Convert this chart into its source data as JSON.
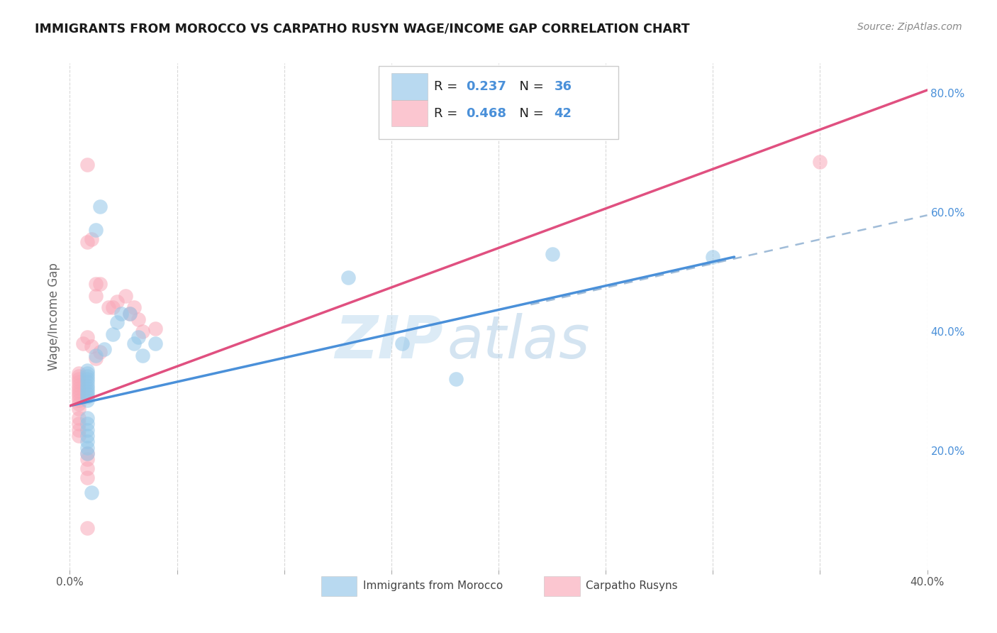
{
  "title": "IMMIGRANTS FROM MOROCCO VS CARPATHO RUSYN WAGE/INCOME GAP CORRELATION CHART",
  "source": "Source: ZipAtlas.com",
  "ylabel": "Wage/Income Gap",
  "xlim": [
    0.0,
    0.4
  ],
  "ylim": [
    0.0,
    0.85
  ],
  "blue_R": "0.237",
  "blue_N": "36",
  "pink_R": "0.468",
  "pink_N": "42",
  "blue_color": "#93c6e8",
  "pink_color": "#f9a8b8",
  "blue_line_color": "#4a90d9",
  "pink_line_color": "#e05080",
  "dashed_line_color": "#a0bcd8",
  "watermark_zip": "ZIP",
  "watermark_atlas": "atlas",
  "background_color": "#ffffff",
  "grid_color": "#d8d8d8",
  "blue_line_x0": 0.0,
  "blue_line_y0": 0.275,
  "blue_line_x1": 0.31,
  "blue_line_y1": 0.525,
  "pink_line_x0": 0.0,
  "pink_line_y0": 0.275,
  "pink_line_x1": 0.4,
  "pink_line_y1": 0.805,
  "dash_line_x0": 0.215,
  "dash_line_y0": 0.445,
  "dash_line_x1": 0.4,
  "dash_line_y1": 0.595,
  "blue_scatter_x": [
    0.008,
    0.008,
    0.008,
    0.008,
    0.008,
    0.008,
    0.008,
    0.008,
    0.008,
    0.008,
    0.008,
    0.008,
    0.008,
    0.008,
    0.008,
    0.008,
    0.008,
    0.008,
    0.012,
    0.016,
    0.02,
    0.022,
    0.024,
    0.028,
    0.03,
    0.032,
    0.034,
    0.04,
    0.012,
    0.014,
    0.13,
    0.155,
    0.225,
    0.3,
    0.18,
    0.01
  ],
  "blue_scatter_y": [
    0.285,
    0.29,
    0.295,
    0.3,
    0.305,
    0.31,
    0.315,
    0.32,
    0.325,
    0.33,
    0.335,
    0.255,
    0.245,
    0.235,
    0.225,
    0.215,
    0.205,
    0.195,
    0.36,
    0.37,
    0.395,
    0.415,
    0.43,
    0.43,
    0.38,
    0.39,
    0.36,
    0.38,
    0.57,
    0.61,
    0.49,
    0.38,
    0.53,
    0.525,
    0.32,
    0.13
  ],
  "pink_scatter_x": [
    0.004,
    0.004,
    0.004,
    0.004,
    0.004,
    0.004,
    0.004,
    0.004,
    0.004,
    0.004,
    0.004,
    0.004,
    0.004,
    0.004,
    0.004,
    0.004,
    0.006,
    0.008,
    0.01,
    0.012,
    0.014,
    0.018,
    0.02,
    0.022,
    0.026,
    0.028,
    0.03,
    0.032,
    0.034,
    0.04,
    0.008,
    0.01,
    0.012,
    0.012,
    0.014,
    0.35,
    0.008,
    0.008,
    0.008,
    0.008,
    0.008,
    0.008
  ],
  "pink_scatter_y": [
    0.27,
    0.278,
    0.285,
    0.29,
    0.295,
    0.3,
    0.305,
    0.31,
    0.315,
    0.32,
    0.325,
    0.33,
    0.255,
    0.245,
    0.235,
    0.225,
    0.38,
    0.39,
    0.375,
    0.355,
    0.365,
    0.44,
    0.44,
    0.45,
    0.46,
    0.43,
    0.44,
    0.42,
    0.4,
    0.405,
    0.55,
    0.555,
    0.48,
    0.46,
    0.48,
    0.685,
    0.68,
    0.195,
    0.185,
    0.17,
    0.155,
    0.07
  ]
}
